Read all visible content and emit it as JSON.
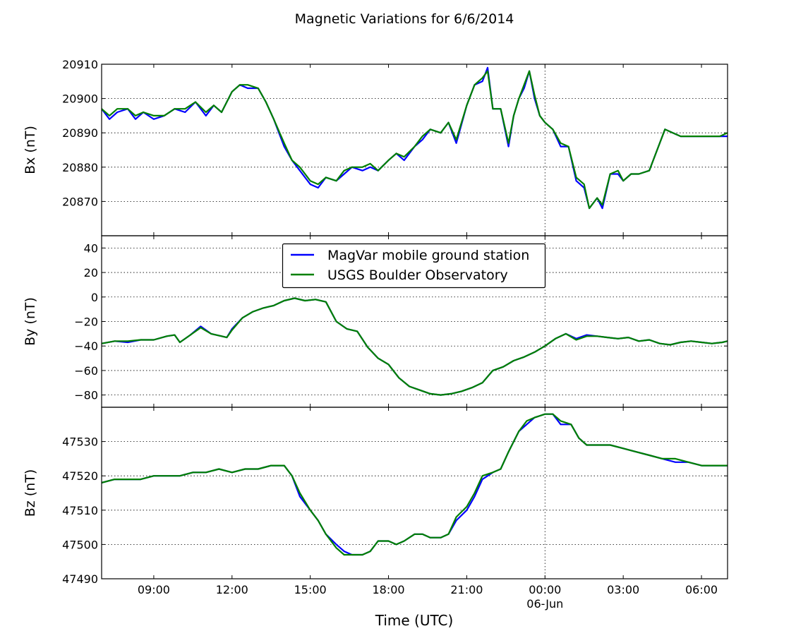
{
  "chart_data": {
    "type": "line",
    "title": "Magnetic Variations for 6/6/2014",
    "xlabel": "Time (UTC)",
    "x_unit": "hours",
    "xlim": [
      7.0,
      31.0
    ],
    "xticks": [
      {
        "value": 9,
        "label": "09:00",
        "sublabel": ""
      },
      {
        "value": 12,
        "label": "12:00",
        "sublabel": ""
      },
      {
        "value": 15,
        "label": "15:00",
        "sublabel": ""
      },
      {
        "value": 18,
        "label": "18:00",
        "sublabel": ""
      },
      {
        "value": 21,
        "label": "21:00",
        "sublabel": ""
      },
      {
        "value": 24,
        "label": "00:00",
        "sublabel": "06-Jun"
      },
      {
        "value": 27,
        "label": "03:00",
        "sublabel": ""
      },
      {
        "value": 30,
        "label": "06:00",
        "sublabel": ""
      }
    ],
    "grid": true,
    "legend": {
      "placement": "upper-center of middle panel",
      "entries": [
        {
          "name": "MagVar mobile ground station",
          "color": "#0000ff"
        },
        {
          "name": "USGS Boulder Observatory",
          "color": "#008000"
        }
      ]
    },
    "panels": [
      {
        "ylabel": "Bx (nT)",
        "ylim": [
          20860,
          20910
        ],
        "yticks": [
          20870,
          20880,
          20890,
          20900,
          20910
        ],
        "ytick_labels": [
          "20870",
          "20880",
          "20890",
          "20900",
          "20910"
        ],
        "x": [
          7.0,
          7.3,
          7.6,
          8.0,
          8.3,
          8.6,
          9.0,
          9.4,
          9.8,
          10.2,
          10.6,
          11.0,
          11.3,
          11.6,
          12.0,
          12.3,
          12.6,
          13.0,
          13.3,
          13.6,
          14.0,
          14.3,
          14.6,
          15.0,
          15.3,
          15.6,
          16.0,
          16.3,
          16.6,
          17.0,
          17.3,
          17.6,
          18.0,
          18.3,
          18.6,
          19.0,
          19.3,
          19.6,
          20.0,
          20.3,
          20.6,
          21.0,
          21.3,
          21.6,
          21.8,
          22.0,
          22.3,
          22.6,
          22.8,
          23.0,
          23.2,
          23.4,
          23.6,
          23.8,
          24.0,
          24.3,
          24.6,
          24.9,
          25.2,
          25.5,
          25.7,
          26.0,
          26.2,
          26.5,
          26.8,
          27.0,
          27.3,
          27.6,
          28.0,
          28.3,
          28.6,
          28.9,
          29.2,
          29.5,
          29.8,
          30.1,
          30.4,
          30.7,
          31.0
        ],
        "series": [
          {
            "name": "MagVar mobile ground station",
            "values": [
              20897,
              20894,
              20896,
              20897,
              20894,
              20896,
              20894,
              20895,
              20897,
              20896,
              20899,
              20895,
              20898,
              20896,
              20902,
              20904,
              20903,
              20903,
              20899,
              20894,
              20886,
              20882,
              20879,
              20875,
              20874,
              20877,
              20876,
              20878,
              20880,
              20879,
              20880,
              20879,
              20882,
              20884,
              20882,
              20886,
              20888,
              20891,
              20890,
              20893,
              20887,
              20898,
              20904,
              20905,
              20909,
              20897,
              20897,
              20886,
              20895,
              20900,
              20903,
              20908,
              20900,
              20895,
              20893,
              20891,
              20886,
              20886,
              20876,
              20874,
              20868,
              20871,
              20868,
              20878,
              20878,
              20876,
              20878,
              20878,
              20879,
              20885,
              20891,
              20890,
              20889,
              20889,
              20889,
              20889,
              20889,
              20889,
              20889
            ]
          },
          {
            "name": "USGS Boulder Observatory",
            "values": [
              20897,
              20895,
              20897,
              20897,
              20895,
              20896,
              20895,
              20895,
              20897,
              20897,
              20899,
              20896,
              20898,
              20896,
              20902,
              20904,
              20904,
              20903,
              20899,
              20894,
              20887,
              20882,
              20880,
              20876,
              20875,
              20877,
              20876,
              20879,
              20880,
              20880,
              20881,
              20879,
              20882,
              20884,
              20883,
              20886,
              20889,
              20891,
              20890,
              20893,
              20888,
              20898,
              20904,
              20906,
              20908,
              20897,
              20897,
              20887,
              20895,
              20900,
              20904,
              20908,
              20901,
              20895,
              20893,
              20891,
              20887,
              20886,
              20877,
              20875,
              20868,
              20871,
              20869,
              20878,
              20879,
              20876,
              20878,
              20878,
              20879,
              20885,
              20891,
              20890,
              20889,
              20889,
              20889,
              20889,
              20889,
              20889,
              20890
            ]
          }
        ]
      },
      {
        "ylabel": "By (nT)",
        "ylim": [
          -90,
          50
        ],
        "yticks": [
          -80,
          -60,
          -40,
          -20,
          0,
          20,
          40
        ],
        "ytick_labels": [
          "−80",
          "−60",
          "−40",
          "−20",
          "0",
          "20",
          "40"
        ],
        "x": [
          7.0,
          7.5,
          8.0,
          8.5,
          9.0,
          9.5,
          9.8,
          10.0,
          10.4,
          10.8,
          11.2,
          11.6,
          11.8,
          12.0,
          12.4,
          12.8,
          13.2,
          13.6,
          14.0,
          14.4,
          14.8,
          15.2,
          15.6,
          16.0,
          16.4,
          16.8,
          17.2,
          17.6,
          18.0,
          18.4,
          18.8,
          19.2,
          19.6,
          20.0,
          20.4,
          20.8,
          21.2,
          21.6,
          22.0,
          22.4,
          22.8,
          23.2,
          23.6,
          24.0,
          24.4,
          24.8,
          25.2,
          25.6,
          26.0,
          26.4,
          26.8,
          27.2,
          27.6,
          28.0,
          28.4,
          28.8,
          29.2,
          29.6,
          30.0,
          30.4,
          30.8,
          31.0
        ],
        "series": [
          {
            "name": "MagVar mobile ground station",
            "values": [
              -38,
              -36,
              -37,
              -35,
              -35,
              -32,
              -31,
              -37,
              -31,
              -24,
              -30,
              -32,
              -33,
              -26,
              -17,
              -12,
              -9,
              -7,
              -3,
              -1,
              -3,
              -2,
              -4,
              -20,
              -26,
              -28,
              -41,
              -50,
              -55,
              -66,
              -73,
              -76,
              -79,
              -80,
              -79,
              -77,
              -74,
              -70,
              -60,
              -57,
              -52,
              -49,
              -45,
              -40,
              -34,
              -30,
              -34,
              -31,
              -32,
              -33,
              -34,
              -33,
              -36,
              -35,
              -38,
              -39,
              -37,
              -36,
              -37,
              -38,
              -37,
              -36
            ]
          },
          {
            "name": "USGS Boulder Observatory",
            "values": [
              -38,
              -36,
              -36,
              -35,
              -35,
              -32,
              -31,
              -37,
              -31,
              -25,
              -30,
              -32,
              -33,
              -27,
              -17,
              -12,
              -9,
              -7,
              -3,
              -1,
              -3,
              -2,
              -4,
              -20,
              -26,
              -28,
              -41,
              -50,
              -55,
              -66,
              -73,
              -76,
              -79,
              -80,
              -79,
              -77,
              -74,
              -70,
              -60,
              -57,
              -52,
              -49,
              -45,
              -40,
              -34,
              -30,
              -35,
              -32,
              -32,
              -33,
              -34,
              -33,
              -36,
              -35,
              -38,
              -39,
              -37,
              -36,
              -37,
              -38,
              -37,
              -36
            ]
          }
        ]
      },
      {
        "ylabel": "Bz (nT)",
        "ylim": [
          47490,
          47540
        ],
        "yticks": [
          47490,
          47500,
          47510,
          47520,
          47530
        ],
        "ytick_labels": [
          "47490",
          "47500",
          "47510",
          "47520",
          "47530"
        ],
        "x": [
          7.0,
          7.5,
          8.0,
          8.5,
          9.0,
          9.5,
          10.0,
          10.5,
          11.0,
          11.5,
          12.0,
          12.5,
          13.0,
          13.5,
          14.0,
          14.3,
          14.6,
          15.0,
          15.3,
          15.6,
          16.0,
          16.3,
          16.6,
          17.0,
          17.3,
          17.6,
          18.0,
          18.3,
          18.6,
          19.0,
          19.3,
          19.6,
          20.0,
          20.3,
          20.6,
          21.0,
          21.3,
          21.6,
          22.0,
          22.3,
          22.6,
          23.0,
          23.3,
          23.6,
          24.0,
          24.3,
          24.6,
          25.0,
          25.3,
          25.6,
          26.0,
          26.5,
          27.0,
          27.5,
          28.0,
          28.5,
          29.0,
          29.5,
          30.0,
          30.5,
          31.0
        ],
        "series": [
          {
            "name": "MagVar mobile ground station",
            "values": [
              47518,
              47519,
              47519,
              47519,
              47520,
              47520,
              47520,
              47521,
              47521,
              47522,
              47521,
              47522,
              47522,
              47523,
              47523,
              47520,
              47514,
              47510,
              47507,
              47503,
              47500,
              47498,
              47497,
              47497,
              47498,
              47501,
              47501,
              47500,
              47501,
              47503,
              47503,
              47502,
              47502,
              47503,
              47507,
              47510,
              47514,
              47519,
              47521,
              47522,
              47527,
              47533,
              47535,
              47537,
              47538,
              47538,
              47535,
              47535,
              47531,
              47529,
              47529,
              47529,
              47528,
              47527,
              47526,
              47525,
              47524,
              47524,
              47523,
              47523,
              47523
            ]
          },
          {
            "name": "USGS Boulder Observatory",
            "values": [
              47518,
              47519,
              47519,
              47519,
              47520,
              47520,
              47520,
              47521,
              47521,
              47522,
              47521,
              47522,
              47522,
              47523,
              47523,
              47520,
              47515,
              47510,
              47507,
              47503,
              47499,
              47497,
              47497,
              47497,
              47498,
              47501,
              47501,
              47500,
              47501,
              47503,
              47503,
              47502,
              47502,
              47503,
              47508,
              47511,
              47515,
              47520,
              47521,
              47522,
              47527,
              47533,
              47536,
              47537,
              47538,
              47538,
              47536,
              47535,
              47531,
              47529,
              47529,
              47529,
              47528,
              47527,
              47526,
              47525,
              47525,
              47524,
              47523,
              47523,
              47523
            ]
          }
        ]
      }
    ],
    "vertical_grid_lines": [
      24
    ]
  }
}
